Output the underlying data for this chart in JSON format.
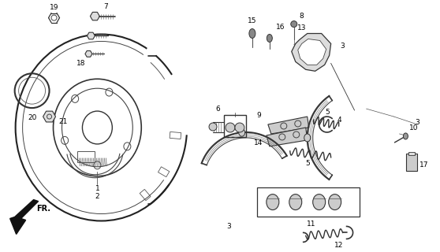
{
  "bg_color": "#ffffff",
  "fig_width": 5.58,
  "fig_height": 3.2,
  "dpi": 100,
  "line_color": "#333333",
  "text_color": "#000000"
}
